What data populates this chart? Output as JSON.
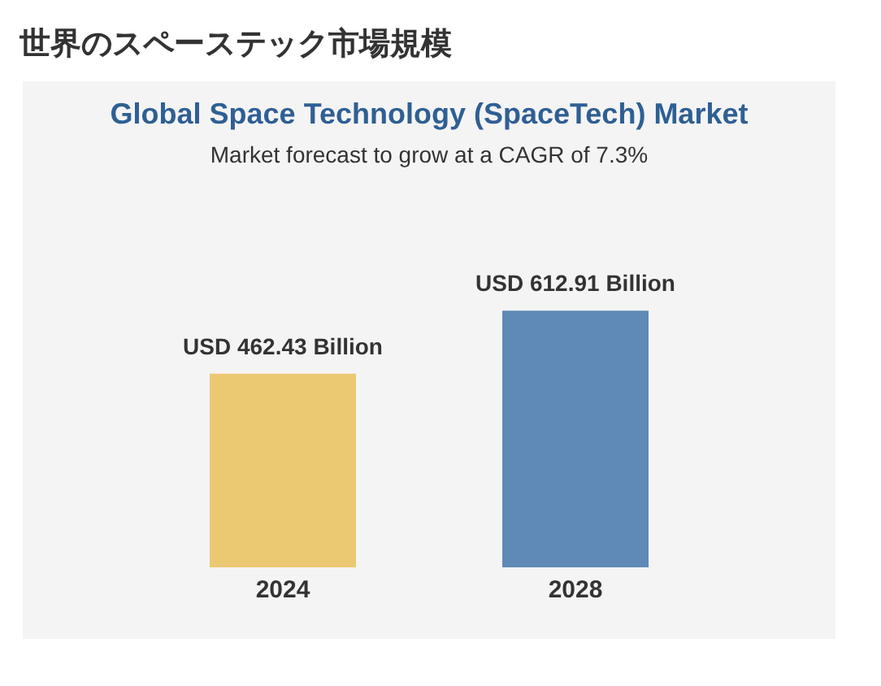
{
  "chart_data": {
    "type": "bar",
    "title": "世界のスペーステック市場規模",
    "subtitle": "Global Space Technology (SpaceTech) Market",
    "annotations": [
      "Market forecast to grow at a CAGR of 7.3%"
    ],
    "categories": [
      "2024",
      "2028"
    ],
    "values": [
      462.43,
      612.91
    ],
    "colors": [
      "#ebc872",
      "#5f89b6"
    ],
    "value_labels": [
      "USD 462.43 Billion",
      "USD 612.91 Billion"
    ],
    "legend": false,
    "grid": false
  }
}
